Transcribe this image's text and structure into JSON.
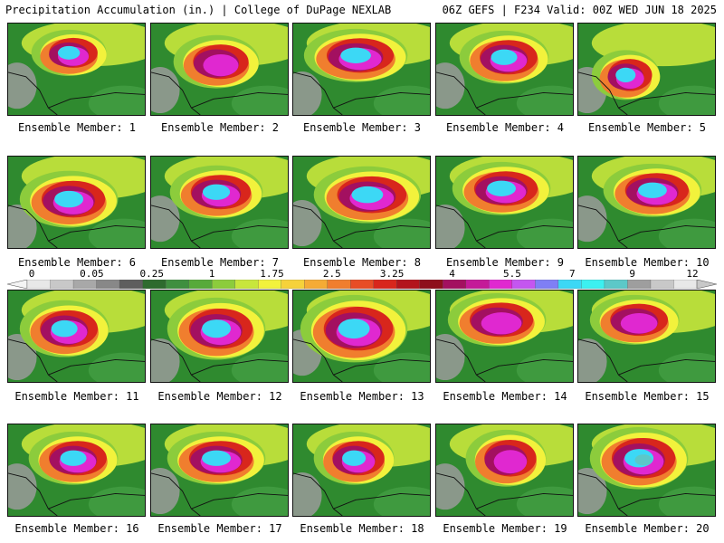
{
  "header": {
    "left": "Precipitation Accumulation (in.) | College of DuPage NEXLAB",
    "right": "06Z GEFS | F234 Valid: 00Z WED JUN 18 2025"
  },
  "members": [
    {
      "label": "Ensemble Member: 1",
      "peak": 7.2
    },
    {
      "label": "Ensemble Member: 2",
      "peak": 6.1
    },
    {
      "label": "Ensemble Member: 3",
      "peak": 8.5
    },
    {
      "label": "Ensemble Member: 4",
      "peak": 7.0
    },
    {
      "label": "Ensemble Member: 5",
      "peak": 7.4
    },
    {
      "label": "Ensemble Member: 6",
      "peak": 8.0
    },
    {
      "label": "Ensemble Member: 7",
      "peak": 7.0
    },
    {
      "label": "Ensemble Member: 8",
      "peak": 7.0
    },
    {
      "label": "Ensemble Member: 9",
      "peak": 7.0
    },
    {
      "label": "Ensemble Member: 10",
      "peak": 7.0
    },
    {
      "label": "Ensemble Member: 11",
      "peak": 8.0
    },
    {
      "label": "Ensemble Member: 12",
      "peak": 7.0
    },
    {
      "label": "Ensemble Member: 13",
      "peak": 7.2
    },
    {
      "label": "Ensemble Member: 14",
      "peak": 6.5
    },
    {
      "label": "Ensemble Member: 15",
      "peak": 5.8
    },
    {
      "label": "Ensemble Member: 16",
      "peak": 7.0
    },
    {
      "label": "Ensemble Member: 17",
      "peak": 7.0
    },
    {
      "label": "Ensemble Member: 18",
      "peak": 7.0
    },
    {
      "label": "Ensemble Member: 19",
      "peak": 5.8
    },
    {
      "label": "Ensemble Member: 20",
      "peak": 9.0
    }
  ],
  "color_scale": {
    "tick_labels": [
      "0",
      "0.05",
      "0.25",
      "1",
      "1.75",
      "2.5",
      "3.25",
      "4",
      "5.5",
      "7",
      "9",
      "12"
    ],
    "colors": [
      "#e8e8e8",
      "#c8c8c8",
      "#a8a8a8",
      "#888888",
      "#5e5e5e",
      "#2e6b2e",
      "#3f8f3f",
      "#57aa3a",
      "#8ccc3c",
      "#c8e63c",
      "#f2f23c",
      "#f6d23a",
      "#f5ab35",
      "#f07e2e",
      "#e84d26",
      "#d8261c",
      "#b3141c",
      "#8e0f1c",
      "#a31060",
      "#c41a98",
      "#e028d0",
      "#c456f0",
      "#7f7ff5",
      "#3cd8f5",
      "#3cf0f0",
      "#5cc8c8",
      "#9e9e9e",
      "#c8c8c8",
      "#e8e8e8"
    ]
  }
}
